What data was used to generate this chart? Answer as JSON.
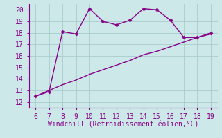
{
  "x": [
    6,
    7,
    8,
    9,
    10,
    11,
    12,
    13,
    14,
    15,
    16,
    17,
    18,
    19
  ],
  "line1_y": [
    12.5,
    12.9,
    18.1,
    17.9,
    20.1,
    19.0,
    18.7,
    19.1,
    20.1,
    20.0,
    19.1,
    17.6,
    17.6,
    18.0
  ],
  "line2_y": [
    12.5,
    13.0,
    13.5,
    13.9,
    14.4,
    14.8,
    15.2,
    15.6,
    16.1,
    16.4,
    16.8,
    17.2,
    17.6,
    17.9
  ],
  "line_color": "#880088",
  "bg_color": "#cce8e8",
  "grid_color": "#aacccc",
  "spine_color": "#880088",
  "xlabel": "Windchill (Refroidissement éolien,°C)",
  "xlim": [
    5.5,
    19.5
  ],
  "ylim": [
    11.5,
    20.5
  ],
  "xticks": [
    6,
    7,
    8,
    9,
    10,
    11,
    12,
    13,
    14,
    15,
    16,
    17,
    18,
    19
  ],
  "yticks": [
    12,
    13,
    14,
    15,
    16,
    17,
    18,
    19,
    20
  ],
  "marker": "D",
  "marker_size": 2.5,
  "line_width": 1.0,
  "xlabel_fontsize": 7,
  "tick_fontsize": 7,
  "label_color": "#880088",
  "tick_color": "#880088"
}
